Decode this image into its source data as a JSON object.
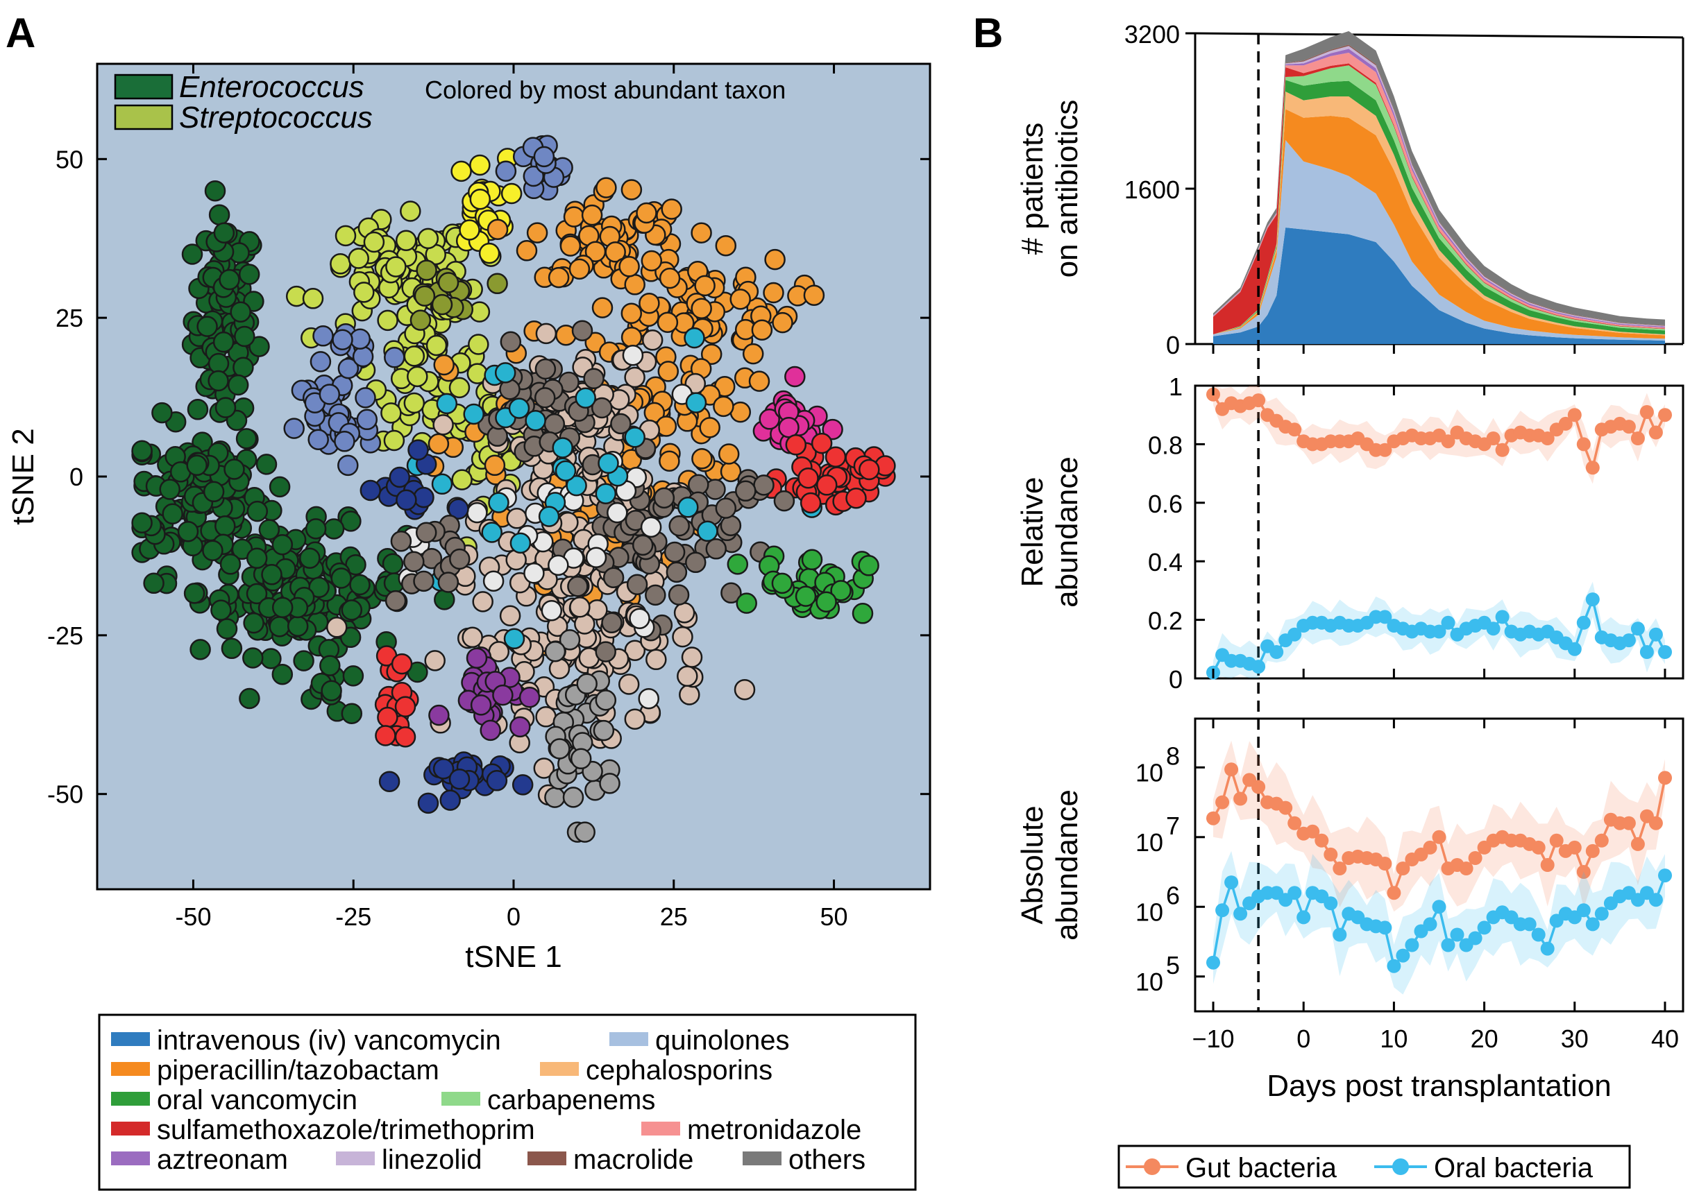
{
  "panels": {
    "a": "A",
    "b": "B"
  },
  "chart_data": [
    {
      "type": "scatter",
      "xlabel": "tSNE 1",
      "ylabel": "tSNE 2",
      "xlim": [
        -65,
        65
      ],
      "ylim": [
        -65,
        65
      ],
      "xticks": [
        "-50",
        "-25",
        "0",
        "25",
        "50"
      ],
      "yticks": [
        "50",
        "25",
        "0",
        "-25",
        "-50"
      ],
      "background_color": "#b0c4d8",
      "annotation": "Colored by most abundant taxon",
      "taxon_legend": [
        {
          "name": "Enterococcus",
          "color": "#1a6e38"
        },
        {
          "name": "Streptococcus",
          "color": "#a9c24a"
        }
      ],
      "clusters": [
        {
          "color": "#16632a",
          "cx": -45,
          "cy": 25,
          "sx": 2.5,
          "sy": 8,
          "n": 90
        },
        {
          "color": "#16632a",
          "cx": -49,
          "cy": -3,
          "sx": 5,
          "sy": 6,
          "n": 130
        },
        {
          "color": "#16632a",
          "cx": -33,
          "cy": -18,
          "sx": 8,
          "sy": 5,
          "n": 150
        },
        {
          "color": "#16632a",
          "cx": -28,
          "cy": -34,
          "sx": 3,
          "sy": 2,
          "n": 12
        },
        {
          "color": "#c8dc4e",
          "cx": -18,
          "cy": 32,
          "sx": 6,
          "sy": 4,
          "n": 70
        },
        {
          "color": "#c8dc4e",
          "cx": -12,
          "cy": 18,
          "sx": 5,
          "sy": 6,
          "n": 55
        },
        {
          "color": "#c8dc4e",
          "cx": -5,
          "cy": 5,
          "sx": 4,
          "sy": 4,
          "n": 30
        },
        {
          "color": "#8a9a30",
          "cx": -12,
          "cy": 28,
          "sx": 3,
          "sy": 3,
          "n": 15
        },
        {
          "color": "#f7ef2a",
          "cx": -5,
          "cy": 43,
          "sx": 2,
          "sy": 3.5,
          "n": 22
        },
        {
          "color": "#6f87c3",
          "cx": 4,
          "cy": 48,
          "sx": 2.5,
          "sy": 2.5,
          "n": 18
        },
        {
          "color": "#6f87c3",
          "cx": -28,
          "cy": 9,
          "sx": 3,
          "sy": 4,
          "n": 40
        },
        {
          "color": "#6f87c3",
          "cx": -25,
          "cy": 20,
          "sx": 3,
          "sy": 2,
          "n": 15
        },
        {
          "color": "#f29b33",
          "cx": 15,
          "cy": 38,
          "sx": 6,
          "sy": 4,
          "n": 60
        },
        {
          "color": "#f29b33",
          "cx": 28,
          "cy": 27,
          "sx": 8,
          "sy": 4,
          "n": 70
        },
        {
          "color": "#f29b33",
          "cx": 25,
          "cy": 10,
          "sx": 6,
          "sy": 5,
          "n": 40
        },
        {
          "color": "#f29b33",
          "cx": 10,
          "cy": 0,
          "sx": 10,
          "sy": 12,
          "n": 70
        },
        {
          "color": "#d8bfb0",
          "cx": 10,
          "cy": 5,
          "sx": 7,
          "sy": 8,
          "n": 110
        },
        {
          "color": "#d8bfb0",
          "cx": 10,
          "cy": -25,
          "sx": 10,
          "sy": 8,
          "n": 130
        },
        {
          "color": "#7d726b",
          "cx": 22,
          "cy": -10,
          "sx": 6,
          "sy": 6,
          "n": 60
        },
        {
          "color": "#7d726b",
          "cx": 5,
          "cy": 10,
          "sx": 5,
          "sy": 5,
          "n": 40
        },
        {
          "color": "#9f9f9f",
          "cx": 10,
          "cy": -42,
          "sx": 3,
          "sy": 6,
          "n": 40
        },
        {
          "color": "#e8e8e8",
          "cx": 10,
          "cy": -10,
          "sx": 10,
          "sy": 10,
          "n": 30
        },
        {
          "color": "#28b3d0",
          "cx": 5,
          "cy": 0,
          "sx": 14,
          "sy": 12,
          "n": 30
        },
        {
          "color": "#e0309a",
          "cx": 43,
          "cy": 8,
          "sx": 3,
          "sy": 3,
          "n": 25
        },
        {
          "color": "#ee3333",
          "cx": 50,
          "cy": 0,
          "sx": 4,
          "sy": 2,
          "n": 45
        },
        {
          "color": "#ee3333",
          "cx": -18,
          "cy": -35,
          "sx": 1.5,
          "sy": 4,
          "n": 20
        },
        {
          "color": "#2fa83b",
          "cx": 47,
          "cy": -17,
          "sx": 4,
          "sy": 2.5,
          "n": 35
        },
        {
          "color": "#8a3a9f",
          "cx": -4,
          "cy": -33,
          "sx": 3,
          "sy": 3,
          "n": 30
        },
        {
          "color": "#233a8f",
          "cx": -10,
          "cy": -48,
          "sx": 4,
          "sy": 2,
          "n": 25
        },
        {
          "color": "#233a8f",
          "cx": -17,
          "cy": -2,
          "sx": 3,
          "sy": 3,
          "n": 15
        },
        {
          "color": "#7d726b",
          "cx": -14,
          "cy": -14,
          "sx": 3,
          "sy": 3,
          "n": 15
        },
        {
          "color": "#7d726b",
          "cx": 37,
          "cy": -3,
          "sx": 2,
          "sy": 2,
          "n": 10
        }
      ]
    },
    {
      "type": "area",
      "ylabel": [
        "# patients",
        "on antibiotics"
      ],
      "xlim": [
        -12,
        42
      ],
      "ylim": [
        0,
        3200
      ],
      "yticks": [
        "3200",
        "1600",
        "0"
      ],
      "x": [
        -10,
        -7,
        -5,
        -4,
        -3,
        -2,
        0,
        3,
        5,
        8,
        10,
        12,
        15,
        18,
        20,
        23,
        25,
        28,
        30,
        33,
        35,
        38,
        40
      ],
      "series": [
        {
          "color": "#2f7cbf",
          "values": [
            80,
            120,
            180,
            300,
            500,
            1200,
            1180,
            1150,
            1130,
            1050,
            850,
            600,
            350,
            220,
            160,
            110,
            90,
            70,
            60,
            50,
            45,
            40,
            35
          ]
        },
        {
          "color": "#a7c0e0",
          "values": [
            20,
            40,
            120,
            300,
            400,
            900,
            700,
            650,
            600,
            500,
            380,
            250,
            160,
            110,
            80,
            60,
            50,
            40,
            35,
            30,
            25,
            20,
            20
          ]
        },
        {
          "color": "#f58a1f",
          "values": [
            0,
            10,
            30,
            40,
            60,
            320,
            450,
            550,
            600,
            600,
            560,
            500,
            380,
            280,
            220,
            160,
            120,
            90,
            70,
            55,
            45,
            40,
            35
          ]
        },
        {
          "color": "#f8b878",
          "values": [
            0,
            5,
            10,
            20,
            30,
            180,
            180,
            200,
            220,
            200,
            160,
            120,
            80,
            55,
            40,
            30,
            25,
            20,
            18,
            15,
            12,
            10,
            10
          ]
        },
        {
          "color": "#2f9e3a",
          "values": [
            0,
            5,
            10,
            15,
            20,
            120,
            150,
            150,
            160,
            160,
            150,
            140,
            120,
            100,
            90,
            75,
            65,
            55,
            50,
            45,
            40,
            40,
            40
          ]
        },
        {
          "color": "#8fd98a",
          "values": [
            0,
            5,
            10,
            15,
            20,
            30,
            100,
            140,
            160,
            160,
            140,
            110,
            70,
            50,
            40,
            30,
            25,
            20,
            20,
            15,
            15,
            15,
            15
          ]
        },
        {
          "color": "#d42a2a",
          "values": [
            180,
            350,
            600,
            500,
            300,
            100,
            30,
            25,
            20,
            20,
            15,
            12,
            10,
            10,
            8,
            8,
            8,
            6,
            6,
            6,
            5,
            5,
            5
          ]
        },
        {
          "color": "#f69191",
          "values": [
            5,
            5,
            10,
            10,
            10,
            20,
            80,
            100,
            110,
            110,
            90,
            60,
            40,
            30,
            25,
            20,
            18,
            15,
            15,
            12,
            12,
            10,
            10
          ]
        },
        {
          "color": "#9b6cc0",
          "values": [
            5,
            5,
            5,
            5,
            5,
            10,
            20,
            30,
            40,
            40,
            35,
            30,
            25,
            20,
            18,
            15,
            15,
            12,
            12,
            10,
            10,
            10,
            10
          ]
        },
        {
          "color": "#c7b4d8",
          "values": [
            5,
            5,
            5,
            5,
            5,
            10,
            20,
            25,
            30,
            30,
            28,
            25,
            20,
            18,
            15,
            12,
            12,
            10,
            10,
            10,
            8,
            8,
            8
          ]
        },
        {
          "color": "#8b574c",
          "values": [
            2,
            2,
            2,
            2,
            2,
            5,
            10,
            10,
            12,
            12,
            10,
            10,
            8,
            8,
            8,
            6,
            6,
            6,
            5,
            5,
            5,
            5,
            5
          ]
        },
        {
          "color": "#7a7a7a",
          "values": [
            20,
            30,
            40,
            40,
            50,
            80,
            120,
            130,
            140,
            140,
            135,
            130,
            120,
            110,
            100,
            90,
            85,
            80,
            75,
            70,
            65,
            60,
            60
          ]
        }
      ]
    },
    {
      "type": "line",
      "ylabel": [
        "Relative",
        "abundance"
      ],
      "xlim": [
        -12,
        42
      ],
      "ylim": [
        0,
        1
      ],
      "yticks": [
        "1",
        "0.8",
        "0.6",
        "0.4",
        "0.2",
        "0"
      ],
      "x": [
        -10,
        -9,
        -8,
        -7,
        -6,
        -5,
        -4,
        -3,
        -2,
        -1,
        0,
        1,
        2,
        3,
        4,
        5,
        6,
        7,
        8,
        9,
        10,
        11,
        12,
        13,
        14,
        15,
        16,
        17,
        18,
        19,
        20,
        21,
        22,
        23,
        24,
        25,
        26,
        27,
        28,
        29,
        30,
        31,
        32,
        33,
        34,
        35,
        36,
        37,
        38,
        39,
        40
      ],
      "series": [
        {
          "name": "Gut bacteria",
          "color": "#f4895f",
          "values": [
            0.97,
            0.92,
            0.94,
            0.93,
            0.94,
            0.95,
            0.9,
            0.88,
            0.86,
            0.85,
            0.81,
            0.8,
            0.8,
            0.81,
            0.81,
            0.81,
            0.82,
            0.8,
            0.78,
            0.78,
            0.81,
            0.82,
            0.83,
            0.82,
            0.82,
            0.83,
            0.81,
            0.84,
            0.82,
            0.81,
            0.8,
            0.82,
            0.78,
            0.83,
            0.84,
            0.83,
            0.83,
            0.82,
            0.85,
            0.87,
            0.9,
            0.8,
            0.72,
            0.85,
            0.86,
            0.87,
            0.86,
            0.82,
            0.91,
            0.84,
            0.9
          ]
        },
        {
          "name": "Oral bacteria",
          "color": "#3bbcee",
          "values": [
            0.02,
            0.08,
            0.06,
            0.06,
            0.05,
            0.04,
            0.11,
            0.09,
            0.13,
            0.15,
            0.18,
            0.19,
            0.19,
            0.18,
            0.19,
            0.18,
            0.18,
            0.19,
            0.21,
            0.21,
            0.18,
            0.17,
            0.16,
            0.17,
            0.16,
            0.16,
            0.19,
            0.15,
            0.17,
            0.18,
            0.19,
            0.17,
            0.21,
            0.16,
            0.15,
            0.16,
            0.15,
            0.16,
            0.14,
            0.12,
            0.1,
            0.19,
            0.27,
            0.14,
            0.13,
            0.12,
            0.13,
            0.17,
            0.09,
            0.15,
            0.09
          ]
        }
      ],
      "band_width": 0.06
    },
    {
      "type": "line",
      "ylabel": [
        "Absolute",
        "abundance"
      ],
      "xlabel": "Days post transplantation",
      "log_scale": true,
      "xlim": [
        -12,
        42
      ],
      "ylim": [
        4.5,
        8.7
      ],
      "yticks": [
        {
          "base": "10",
          "exp": "8",
          "log": 8
        },
        {
          "base": "10",
          "exp": "7",
          "log": 7
        },
        {
          "base": "10",
          "exp": "6",
          "log": 6
        },
        {
          "base": "10",
          "exp": "5",
          "log": 5
        }
      ],
      "xticks": [
        "−10",
        "0",
        "10",
        "20",
        "30",
        "40"
      ],
      "xtick_values": [
        -10,
        0,
        10,
        20,
        30,
        40
      ],
      "x": [
        -10,
        -9,
        -8,
        -7,
        -6,
        -5,
        -4,
        -3,
        -2,
        -1,
        0,
        1,
        2,
        3,
        4,
        5,
        6,
        7,
        8,
        9,
        10,
        11,
        12,
        13,
        14,
        15,
        16,
        17,
        18,
        19,
        20,
        21,
        22,
        23,
        24,
        25,
        26,
        27,
        28,
        29,
        30,
        31,
        32,
        33,
        34,
        35,
        36,
        37,
        38,
        39,
        40
      ],
      "series": [
        {
          "name": "Gut bacteria",
          "color": "#f4895f",
          "log_values": [
            7.27,
            7.5,
            7.97,
            7.55,
            7.82,
            7.72,
            7.5,
            7.48,
            7.42,
            7.2,
            7.05,
            7.08,
            6.95,
            6.75,
            6.55,
            6.7,
            6.72,
            6.7,
            6.68,
            6.62,
            6.2,
            6.55,
            6.68,
            6.75,
            6.85,
            7.0,
            6.55,
            6.6,
            6.55,
            6.7,
            6.85,
            6.95,
            7.0,
            6.95,
            6.95,
            6.9,
            6.85,
            6.6,
            6.95,
            6.8,
            6.85,
            6.5,
            6.8,
            6.95,
            7.25,
            7.2,
            7.2,
            6.9,
            7.3,
            7.2,
            7.85
          ]
        },
        {
          "name": "Oral bacteria",
          "color": "#3bbcee",
          "log_values": [
            5.2,
            5.95,
            6.35,
            5.9,
            6.05,
            6.15,
            6.2,
            6.2,
            6.1,
            6.2,
            5.85,
            6.2,
            6.15,
            6.05,
            5.6,
            5.9,
            5.85,
            5.75,
            5.72,
            5.7,
            5.15,
            5.3,
            5.45,
            5.65,
            5.75,
            6.0,
            5.45,
            5.6,
            5.45,
            5.55,
            5.7,
            5.85,
            5.92,
            5.85,
            5.75,
            5.75,
            5.6,
            5.4,
            5.8,
            5.9,
            5.85,
            5.95,
            5.75,
            5.9,
            6.05,
            6.15,
            6.2,
            6.1,
            6.2,
            6.1,
            6.45
          ]
        }
      ],
      "band_width": 0.45
    }
  ],
  "antibiotic_legend": [
    {
      "name": "intravenous (iv) vancomycin",
      "color": "#2f7cbf"
    },
    {
      "name": "quinolones",
      "color": "#a7c0e0"
    },
    {
      "name": "piperacillin/tazobactam",
      "color": "#f58a1f"
    },
    {
      "name": "cephalosporins",
      "color": "#f8b878"
    },
    {
      "name": "oral vancomycin",
      "color": "#2f9e3a"
    },
    {
      "name": "carbapenems",
      "color": "#8fd98a"
    },
    {
      "name": "sulfamethoxazole/trimethoprim",
      "color": "#d42a2a"
    },
    {
      "name": "metronidazole",
      "color": "#f69191"
    },
    {
      "name": "aztreonam",
      "color": "#9b6cc0"
    },
    {
      "name": "linezolid",
      "color": "#c7b4d8"
    },
    {
      "name": "macrolide",
      "color": "#8b574c"
    },
    {
      "name": "others",
      "color": "#7a7a7a"
    }
  ],
  "bacteria_legend": [
    {
      "name": "Gut bacteria",
      "color": "#f4895f"
    },
    {
      "name": "Oral bacteria",
      "color": "#3bbcee"
    }
  ]
}
